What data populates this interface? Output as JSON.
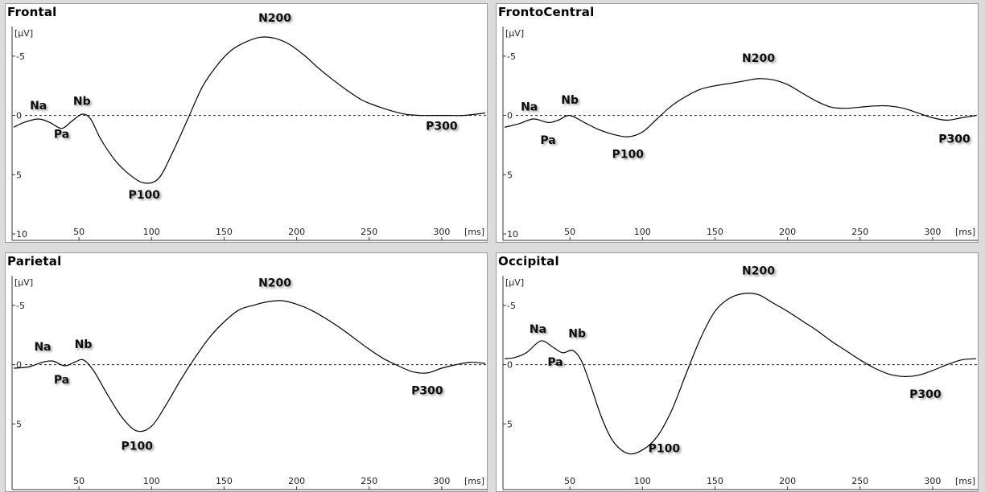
{
  "y_unit": "[µV]",
  "x_unit": "[ms]",
  "chart_data": [
    {
      "type": "line",
      "title": "Frontal",
      "xlim": [
        5,
        330
      ],
      "ylim": [
        -7.5,
        10
      ],
      "y_inverted": true,
      "y_ticks": [
        "-5",
        "0",
        "5",
        "10"
      ],
      "y_tick_values": [
        -5,
        0,
        5,
        10
      ],
      "x_ticks": [
        "50",
        "100",
        "150",
        "200",
        "250",
        "300"
      ],
      "zero_line": true,
      "x": [
        5,
        12,
        22,
        30,
        38,
        45,
        52,
        58,
        65,
        75,
        85,
        95,
        105,
        115,
        125,
        135,
        145,
        155,
        165,
        175,
        185,
        195,
        205,
        215,
        225,
        235,
        245,
        255,
        265,
        275,
        285,
        295,
        305,
        315,
        330
      ],
      "y": [
        1.0,
        0.6,
        0.3,
        0.6,
        1.1,
        0.5,
        -0.1,
        0.3,
        2.0,
        3.8,
        5.0,
        5.7,
        5.3,
        3.0,
        0.3,
        -2.4,
        -4.2,
        -5.5,
        -6.2,
        -6.6,
        -6.5,
        -6.0,
        -5.1,
        -4.0,
        -3.0,
        -2.1,
        -1.3,
        -0.8,
        -0.4,
        -0.1,
        0.0,
        0.0,
        0.0,
        0.0,
        -0.2
      ],
      "annotations": [
        {
          "text": "Na",
          "x": 22,
          "y": -0.5
        },
        {
          "text": "Pa",
          "x": 38,
          "y": 1.9
        },
        {
          "text": "Nb",
          "x": 52,
          "y": -0.9
        },
        {
          "text": "P100",
          "x": 95,
          "y": 7.0
        },
        {
          "text": "N200",
          "x": 185,
          "y": -7.9
        },
        {
          "text": "P300",
          "x": 300,
          "y": 1.2
        }
      ]
    },
    {
      "type": "line",
      "title": "FrontoCentral",
      "xlim": [
        5,
        330
      ],
      "ylim": [
        -7.5,
        10
      ],
      "y_inverted": true,
      "y_ticks": [
        "-5",
        "0",
        "5",
        "10"
      ],
      "y_tick_values": [
        -5,
        0,
        5,
        10
      ],
      "x_ticks": [
        "50",
        "100",
        "150",
        "200",
        "250",
        "300"
      ],
      "zero_line": true,
      "x": [
        5,
        15,
        25,
        35,
        42,
        50,
        60,
        70,
        80,
        90,
        100,
        110,
        120,
        130,
        140,
        150,
        160,
        170,
        180,
        190,
        200,
        210,
        220,
        230,
        240,
        250,
        260,
        270,
        280,
        290,
        300,
        310,
        320,
        330
      ],
      "y": [
        1.0,
        0.7,
        0.3,
        0.6,
        0.4,
        0.0,
        0.6,
        1.2,
        1.6,
        1.8,
        1.4,
        0.3,
        -0.8,
        -1.6,
        -2.2,
        -2.5,
        -2.7,
        -2.9,
        -3.1,
        -3.0,
        -2.6,
        -1.9,
        -1.2,
        -0.7,
        -0.6,
        -0.7,
        -0.8,
        -0.8,
        -0.6,
        -0.2,
        0.2,
        0.4,
        0.2,
        0.0
      ],
      "annotations": [
        {
          "text": "Na",
          "x": 22,
          "y": -0.4
        },
        {
          "text": "Pa",
          "x": 35,
          "y": 2.4
        },
        {
          "text": "Nb",
          "x": 50,
          "y": -1.0
        },
        {
          "text": "P100",
          "x": 90,
          "y": 3.6
        },
        {
          "text": "N200",
          "x": 180,
          "y": -4.5
        },
        {
          "text": "P300",
          "x": 315,
          "y": 2.3
        }
      ]
    },
    {
      "type": "line",
      "title": "Parietal",
      "xlim": [
        5,
        330
      ],
      "ylim": [
        -7.5,
        10
      ],
      "y_inverted": true,
      "y_ticks": [
        "-5",
        "0",
        "5"
      ],
      "y_tick_values": [
        -5,
        0,
        5
      ],
      "x_ticks": [
        "50",
        "100",
        "150",
        "200",
        "250",
        "300"
      ],
      "zero_line": true,
      "x": [
        5,
        15,
        25,
        32,
        40,
        47,
        53,
        60,
        70,
        80,
        90,
        100,
        110,
        120,
        130,
        140,
        150,
        160,
        170,
        180,
        190,
        200,
        210,
        220,
        230,
        240,
        250,
        260,
        270,
        280,
        290,
        300,
        310,
        320,
        330
      ],
      "y": [
        0.3,
        0.2,
        -0.2,
        -0.3,
        0.1,
        -0.2,
        -0.4,
        0.5,
        2.6,
        4.5,
        5.6,
        5.2,
        3.4,
        1.3,
        -0.6,
        -2.3,
        -3.6,
        -4.6,
        -5.0,
        -5.3,
        -5.4,
        -5.1,
        -4.6,
        -3.9,
        -3.1,
        -2.2,
        -1.3,
        -0.5,
        0.1,
        0.6,
        0.7,
        0.3,
        0.0,
        -0.2,
        -0.1
      ],
      "annotations": [
        {
          "text": "Na",
          "x": 25,
          "y": -1.2
        },
        {
          "text": "Pa",
          "x": 38,
          "y": 1.6
        },
        {
          "text": "Nb",
          "x": 53,
          "y": -1.4
        },
        {
          "text": "P100",
          "x": 90,
          "y": 7.2
        },
        {
          "text": "N200",
          "x": 185,
          "y": -6.6
        },
        {
          "text": "P300",
          "x": 290,
          "y": 2.5
        }
      ]
    },
    {
      "type": "line",
      "title": "Occipital",
      "xlim": [
        5,
        330
      ],
      "ylim": [
        -7.5,
        10
      ],
      "y_inverted": true,
      "y_ticks": [
        "-5",
        "0",
        "5"
      ],
      "y_tick_values": [
        -5,
        0,
        5
      ],
      "x_ticks": [
        "50",
        "100",
        "150",
        "200",
        "250",
        "300"
      ],
      "zero_line": true,
      "x": [
        5,
        12,
        20,
        30,
        38,
        45,
        52,
        58,
        65,
        72,
        80,
        90,
        100,
        110,
        120,
        130,
        140,
        150,
        160,
        170,
        180,
        190,
        200,
        210,
        220,
        230,
        240,
        250,
        260,
        270,
        280,
        290,
        300,
        310,
        320,
        330
      ],
      "y": [
        -0.5,
        -0.6,
        -1.0,
        -2.0,
        -1.5,
        -1.0,
        -1.2,
        -0.3,
        2.0,
        4.5,
        6.5,
        7.5,
        7.2,
        6.1,
        3.9,
        0.8,
        -2.2,
        -4.5,
        -5.6,
        -6.0,
        -5.9,
        -5.2,
        -4.5,
        -3.7,
        -2.9,
        -2.0,
        -1.2,
        -0.4,
        0.3,
        0.8,
        1.0,
        0.9,
        0.5,
        0.0,
        -0.4,
        -0.5
      ],
      "annotations": [
        {
          "text": "Na",
          "x": 28,
          "y": -2.7
        },
        {
          "text": "Pa",
          "x": 40,
          "y": 0.1
        },
        {
          "text": "Nb",
          "x": 55,
          "y": -2.3
        },
        {
          "text": "P100",
          "x": 115,
          "y": 7.4
        },
        {
          "text": "N200",
          "x": 180,
          "y": -7.6
        },
        {
          "text": "P300",
          "x": 295,
          "y": 2.8
        }
      ]
    }
  ]
}
